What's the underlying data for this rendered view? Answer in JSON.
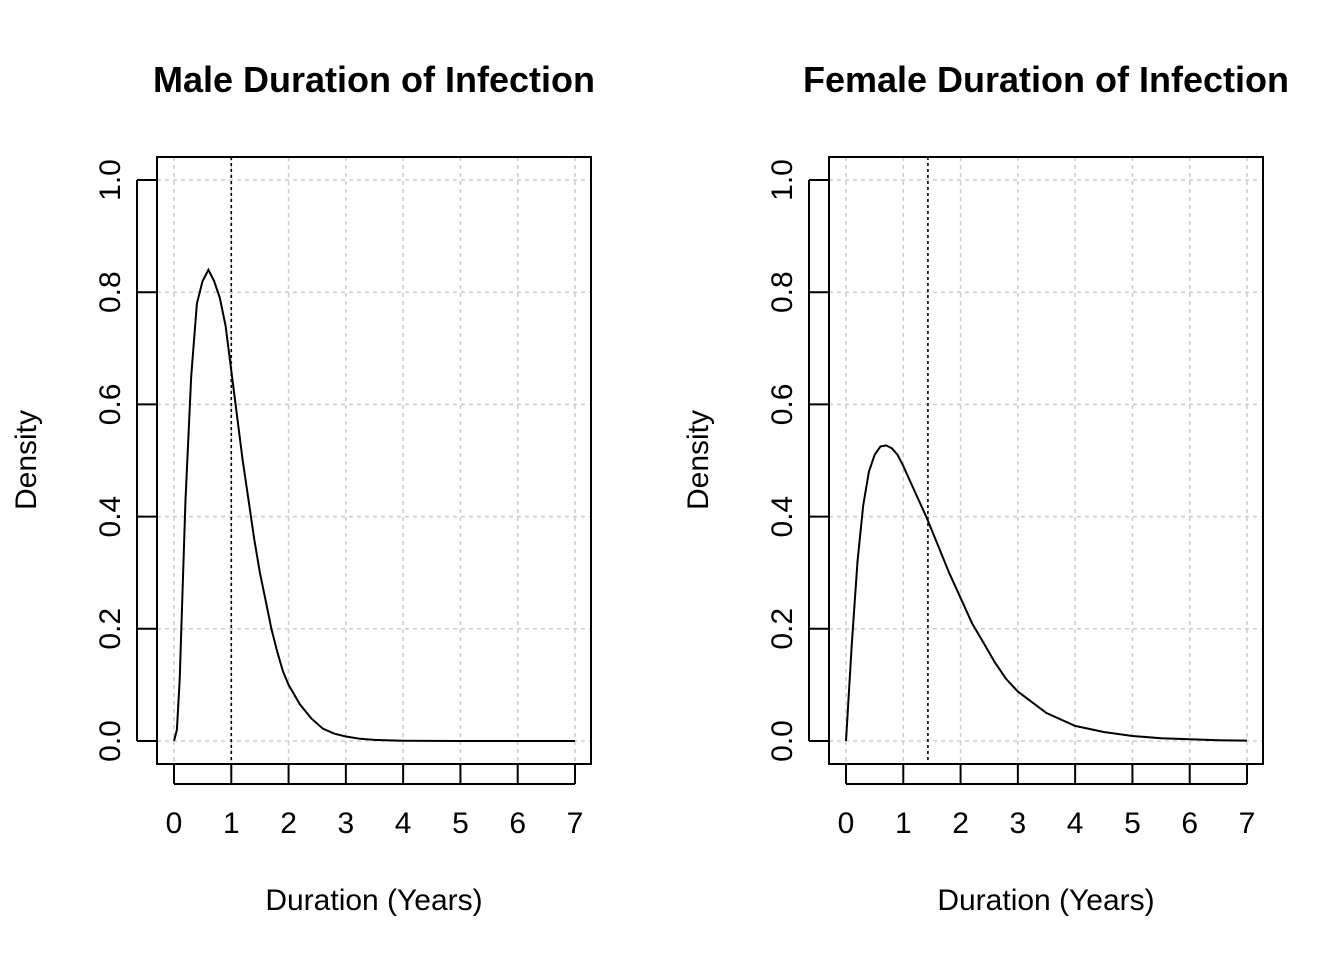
{
  "chart_data": [
    {
      "type": "line",
      "title": "Male Duration of Infection",
      "xlabel": "Duration (Years)",
      "ylabel": "Density",
      "xlim": [
        0,
        7
      ],
      "ylim": [
        0,
        1.0
      ],
      "x_ticks": [
        "0",
        "1",
        "2",
        "3",
        "4",
        "5",
        "6",
        "7"
      ],
      "y_ticks": [
        "0.0",
        "0.2",
        "0.4",
        "0.6",
        "0.8",
        "1.0"
      ],
      "grid": true,
      "vertical_reference_line": 1.0,
      "series": [
        {
          "x": [
            0,
            0.05,
            0.1,
            0.15,
            0.2,
            0.3,
            0.4,
            0.5,
            0.6,
            0.7,
            0.8,
            0.9,
            1.0,
            1.1,
            1.2,
            1.3,
            1.4,
            1.5,
            1.6,
            1.7,
            1.8,
            1.9,
            2.0,
            2.2,
            2.4,
            2.6,
            2.8,
            3.0,
            3.25,
            3.5,
            4.0,
            4.5,
            5.0,
            6.0,
            7.0
          ],
          "values": [
            0.0,
            0.02,
            0.11,
            0.27,
            0.43,
            0.65,
            0.78,
            0.82,
            0.84,
            0.82,
            0.79,
            0.74,
            0.66,
            0.58,
            0.5,
            0.43,
            0.36,
            0.3,
            0.25,
            0.2,
            0.16,
            0.125,
            0.1,
            0.065,
            0.04,
            0.022,
            0.013,
            0.008,
            0.004,
            0.002,
            0.0005,
            0.0001,
            0.0,
            0.0,
            0.0
          ]
        }
      ]
    },
    {
      "type": "line",
      "title": "Female Duration of Infection",
      "xlabel": "Duration (Years)",
      "ylabel": "Density",
      "xlim": [
        0,
        7
      ],
      "ylim": [
        0,
        1.0
      ],
      "x_ticks": [
        "0",
        "1",
        "2",
        "3",
        "4",
        "5",
        "6",
        "7"
      ],
      "y_ticks": [
        "0.0",
        "0.2",
        "0.4",
        "0.6",
        "0.8",
        "1.0"
      ],
      "grid": true,
      "vertical_reference_line": 1.43,
      "series": [
        {
          "x": [
            0,
            0.1,
            0.2,
            0.3,
            0.4,
            0.5,
            0.6,
            0.7,
            0.8,
            0.9,
            1.0,
            1.2,
            1.4,
            1.6,
            1.8,
            2.0,
            2.2,
            2.4,
            2.6,
            2.8,
            3.0,
            3.5,
            4.0,
            4.5,
            5.0,
            5.5,
            6.0,
            6.5,
            7.0
          ],
          "values": [
            0.0,
            0.17,
            0.32,
            0.42,
            0.48,
            0.51,
            0.525,
            0.527,
            0.522,
            0.51,
            0.49,
            0.445,
            0.4,
            0.35,
            0.3,
            0.255,
            0.21,
            0.175,
            0.14,
            0.11,
            0.088,
            0.05,
            0.027,
            0.016,
            0.009,
            0.005,
            0.003,
            0.0015,
            0.0008
          ]
        }
      ]
    }
  ]
}
